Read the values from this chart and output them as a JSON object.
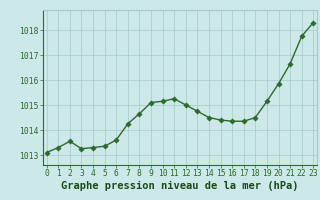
{
  "x": [
    0,
    1,
    2,
    3,
    4,
    5,
    6,
    7,
    8,
    9,
    10,
    11,
    12,
    13,
    14,
    15,
    16,
    17,
    18,
    19,
    20,
    21,
    22,
    23
  ],
  "y": [
    1013.1,
    1013.3,
    1013.55,
    1013.25,
    1013.3,
    1013.35,
    1013.6,
    1014.25,
    1014.65,
    1015.1,
    1015.15,
    1015.25,
    1015.0,
    1014.75,
    1014.5,
    1014.4,
    1014.35,
    1014.35,
    1014.5,
    1015.15,
    1015.85,
    1016.65,
    1017.75,
    1018.3
  ],
  "line_color": "#2d6a2d",
  "marker_color": "#2d6a2d",
  "bg_color": "#cce8e8",
  "grid_color": "#a8c8c8",
  "xlabel": "Graphe pression niveau de la mer (hPa)",
  "ylim_min": 1012.6,
  "ylim_max": 1018.8,
  "xlim_min": -0.3,
  "xlim_max": 23.3,
  "yticks": [
    1013,
    1014,
    1015,
    1016,
    1017,
    1018
  ],
  "xticks": [
    0,
    1,
    2,
    3,
    4,
    5,
    6,
    7,
    8,
    9,
    10,
    11,
    12,
    13,
    14,
    15,
    16,
    17,
    18,
    19,
    20,
    21,
    22,
    23
  ],
  "tick_fontsize": 5.8,
  "label_fontsize": 7.5,
  "line_width": 1.0,
  "marker_size": 2.8
}
